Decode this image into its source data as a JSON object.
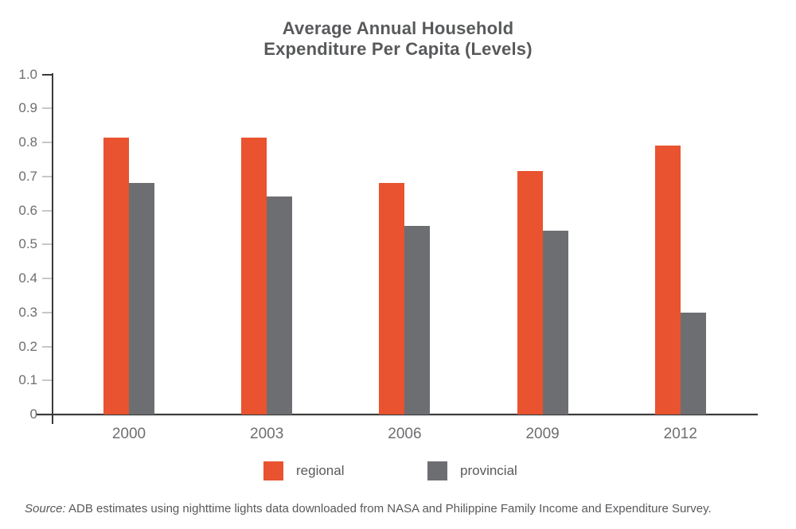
{
  "figure": {
    "source_label": "Source:",
    "source_text": " ADB estimates using nighttime lights data downloaded from NASA and Philippine Family Income and Expenditure Survey."
  },
  "chart_data": {
    "type": "bar",
    "title": "Average Annual Household\nExpenditure Per Capita (Levels)",
    "categories": [
      "2000",
      "2003",
      "2006",
      "2009",
      "2012"
    ],
    "series": [
      {
        "name": "regional",
        "color": "#E9532F",
        "values": [
          0.815,
          0.815,
          0.68,
          0.715,
          0.79
        ]
      },
      {
        "name": "provincial",
        "color": "#6D6E71",
        "values": [
          0.68,
          0.64,
          0.555,
          0.54,
          0.3
        ]
      }
    ],
    "xlabel": "",
    "ylabel": "",
    "ylim": [
      0,
      1.0
    ],
    "yticks": [
      0,
      0.1,
      0.2,
      0.3,
      0.4,
      0.5,
      0.6,
      0.7,
      0.8,
      0.9,
      1.0
    ],
    "ytick_labels": [
      "0",
      "0.1",
      "0.2",
      "0.3",
      "0.4",
      "0.5",
      "0.6",
      "0.7",
      "0.8",
      "0.9",
      "1.0"
    ],
    "grid": false,
    "legend_position": "bottom"
  }
}
